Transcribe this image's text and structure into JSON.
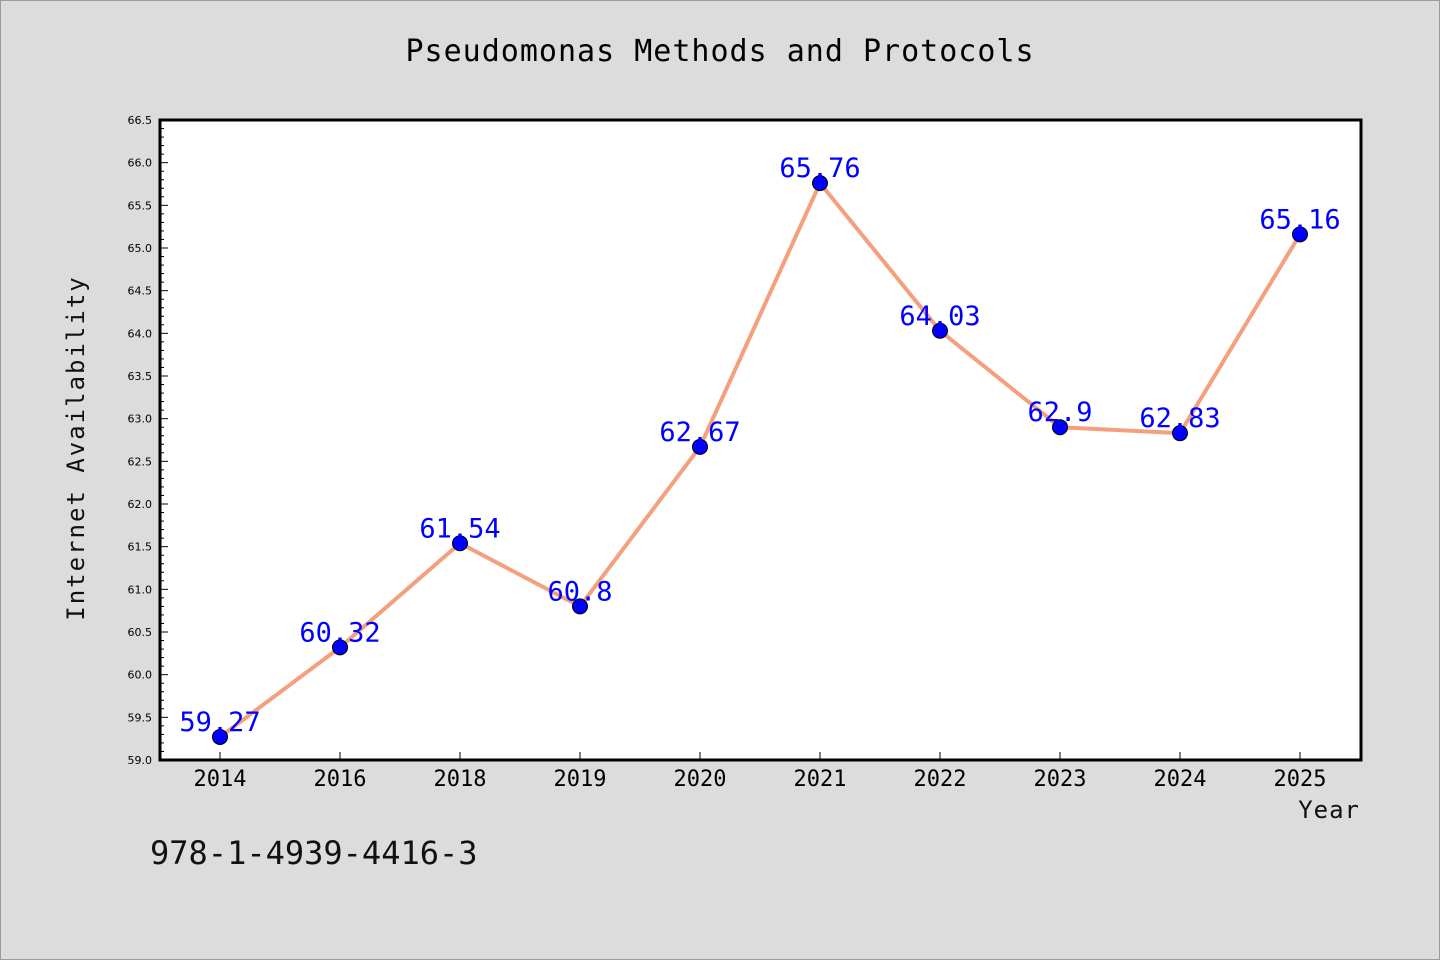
{
  "chart_data": {
    "type": "line",
    "title": "Pseudomonas Methods and Protocols",
    "xlabel": "Year",
    "ylabel": "Internet Availability",
    "categories": [
      "2014",
      "2016",
      "2018",
      "2019",
      "2020",
      "2021",
      "2022",
      "2023",
      "2024",
      "2025"
    ],
    "series": [
      {
        "values": [
          59.27,
          60.32,
          61.54,
          60.8,
          62.67,
          65.76,
          64.03,
          62.9,
          62.83,
          65.16
        ],
        "labels": [
          "59.27",
          "60.32",
          "61.54",
          "60.8",
          "62.67",
          "65.76",
          "64.03",
          "62.9",
          "62.83",
          "65.16"
        ]
      }
    ],
    "ylim": [
      59.0,
      66.5
    ],
    "yticks": [
      "59.0",
      "59.5",
      "60.0",
      "60.5",
      "61.0",
      "61.5",
      "62.0",
      "62.5",
      "63.0",
      "63.5",
      "64.0",
      "64.5",
      "65.0",
      "65.5",
      "66.0",
      "66.5"
    ],
    "grid": false,
    "colors": {
      "line": "#f4a07e",
      "marker": "#0000ff",
      "label": "#0000ff",
      "background": "#dcdcdc",
      "plot_bg": "#ffffff"
    }
  },
  "footer": {
    "isbn": "978-1-4939-4416-3"
  }
}
